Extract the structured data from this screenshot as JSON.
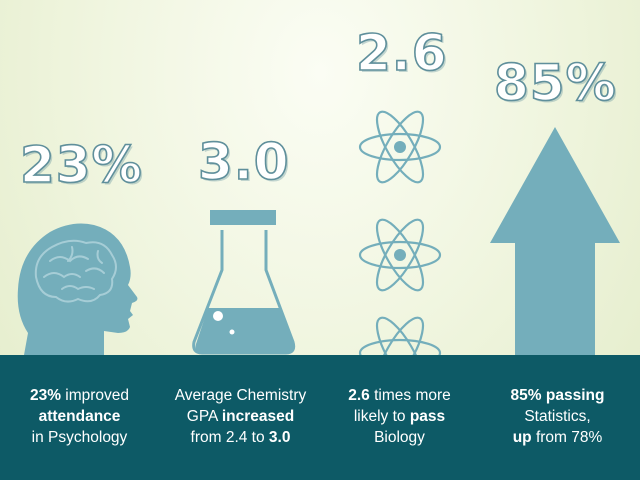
{
  "stats": [
    {
      "value": "23%"
    },
    {
      "value": "3.0"
    },
    {
      "value": "2.6"
    },
    {
      "value": "85%"
    }
  ],
  "captions": [
    {
      "line1_bold": "23%",
      "line1_rest": " improved",
      "line2_bold": "attendance",
      "line3": "in Psychology"
    },
    {
      "line1": "Average Chemistry",
      "line2_pre": "GPA ",
      "line2_bold": "increased",
      "line3_pre": "from 2.4 to ",
      "line3_bold": "3.0"
    },
    {
      "line1_bold": "2.6",
      "line1_rest": " times more",
      "line2_pre": "likely to ",
      "line2_bold": "pass",
      "line3": "Biology"
    },
    {
      "line1_bold": "85% passing",
      "line2": "Statistics,",
      "line3_bold": "up",
      "line3_rest": " from 78%"
    }
  ],
  "icons": [
    "head-brain-icon",
    "flask-icon",
    "atom-icon",
    "up-arrow-icon"
  ],
  "colors": {
    "icon": "#74aebb",
    "band": "#0d5a66",
    "number_outline": "#5f8f9b"
  }
}
